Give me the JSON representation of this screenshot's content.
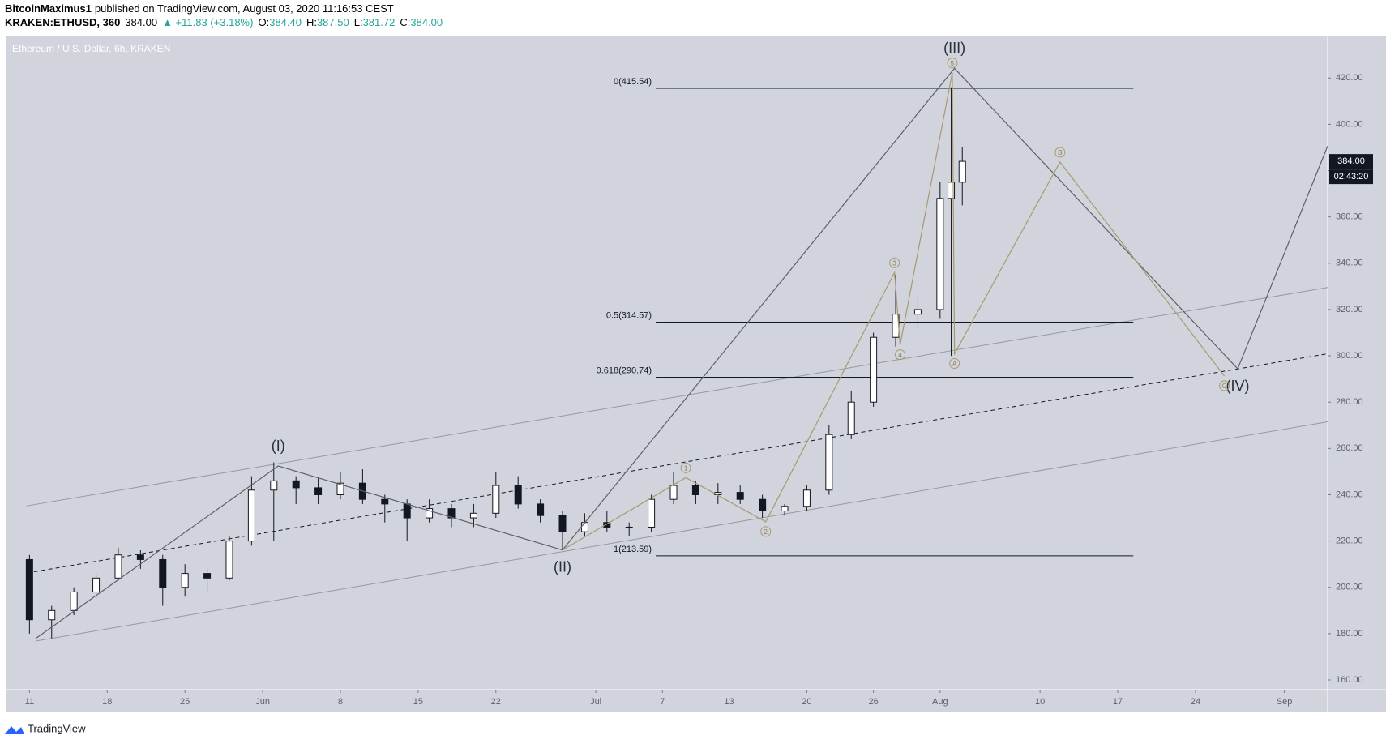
{
  "header": {
    "author": "BitcoinMaximus1",
    "published": "published on TradingView.com, August 03, 2020 11:16:53 CEST",
    "symbol": "KRAKEN:ETHUSD, 360",
    "last": "384.00",
    "change": "▲ +11.83 (+3.18%)",
    "ohlc": [
      {
        "label": "O:",
        "value": "384.40"
      },
      {
        "label": "H:",
        "value": "387.50"
      },
      {
        "label": "L:",
        "value": "381.72"
      },
      {
        "label": "C:",
        "value": "384.00"
      }
    ]
  },
  "footer": {
    "brand": "TradingView"
  },
  "chart_data": {
    "type": "candlestick",
    "title": "Ethereum / U.S. Dollar, 6h, KRAKEN",
    "up_color": "#ffffff",
    "down_color": "#131722",
    "x": [
      0,
      2,
      4,
      6,
      8,
      10,
      12,
      14,
      16,
      18,
      20,
      22,
      24,
      26,
      28,
      30,
      32,
      34,
      36,
      38,
      40,
      42,
      44,
      46,
      48,
      50,
      52,
      54,
      56,
      58,
      60,
      62,
      64,
      66,
      68,
      70,
      72,
      74,
      76,
      78,
      80,
      82,
      83,
      84
    ],
    "open": [
      212,
      186,
      190,
      198,
      204,
      214,
      212,
      200,
      206,
      204,
      220,
      242,
      246,
      243,
      240,
      245,
      238,
      236,
      230,
      234,
      230,
      232,
      244,
      236,
      231,
      224,
      228,
      226,
      226,
      238,
      244,
      240,
      241,
      238,
      233,
      235,
      242,
      266,
      280,
      308,
      318,
      320,
      368,
      375
    ],
    "high": [
      214,
      192,
      200,
      206,
      217,
      216,
      214,
      210,
      208,
      222,
      248,
      254,
      248,
      247,
      250,
      251,
      240,
      238,
      238,
      236,
      236,
      250,
      248,
      238,
      233,
      232,
      233,
      228,
      240,
      250,
      246,
      245,
      244,
      240,
      236,
      244,
      270,
      285,
      310,
      335,
      325,
      375,
      416,
      390
    ],
    "low": [
      180,
      178,
      188,
      195,
      203,
      208,
      192,
      196,
      198,
      203,
      218,
      220,
      236,
      236,
      238,
      236,
      228,
      220,
      228,
      226,
      226,
      230,
      234,
      228,
      216,
      222,
      224,
      222,
      224,
      236,
      236,
      236,
      236,
      230,
      231,
      233,
      240,
      264,
      278,
      304,
      312,
      316,
      300,
      365
    ],
    "close": [
      186,
      190,
      198,
      204,
      214,
      212,
      200,
      206,
      204,
      220,
      242,
      246,
      243,
      240,
      245,
      238,
      236,
      230,
      234,
      230,
      232,
      244,
      236,
      231,
      224,
      228,
      226,
      226,
      238,
      244,
      240,
      241,
      238,
      233,
      235,
      242,
      266,
      280,
      308,
      318,
      320,
      368,
      375,
      384
    ],
    "xlim": [
      -2.07,
      116.9
    ],
    "ylim": [
      155.8,
      438.3
    ],
    "xticks": [
      {
        "value": 0,
        "label": "11"
      },
      {
        "value": 7,
        "label": "18"
      },
      {
        "value": 14,
        "label": "25"
      },
      {
        "value": 21,
        "label": "Jun"
      },
      {
        "value": 28,
        "label": "8"
      },
      {
        "value": 35,
        "label": "15"
      },
      {
        "value": 42,
        "label": "22"
      },
      {
        "value": 51,
        "label": "Jul"
      },
      {
        "value": 57,
        "label": "7"
      },
      {
        "value": 63,
        "label": "13"
      },
      {
        "value": 70,
        "label": "20"
      },
      {
        "value": 76,
        "label": "26"
      },
      {
        "value": 82,
        "label": "Aug"
      },
      {
        "value": 91,
        "label": "10"
      },
      {
        "value": 98,
        "label": "17"
      },
      {
        "value": 105,
        "label": "24"
      },
      {
        "value": 113,
        "label": "Sep"
      }
    ],
    "yticks": [
      {
        "value": 160,
        "label": "160.00"
      },
      {
        "value": 180,
        "label": "180.00"
      },
      {
        "value": 200,
        "label": "200.00"
      },
      {
        "value": 220,
        "label": "220.00"
      },
      {
        "value": 240,
        "label": "240.00"
      },
      {
        "value": 260,
        "label": "260.00"
      },
      {
        "value": 280,
        "label": "280.00"
      },
      {
        "value": 300,
        "label": "300.00"
      },
      {
        "value": 320,
        "label": "320.00"
      },
      {
        "value": 340,
        "label": "340.00"
      },
      {
        "value": 360,
        "label": "360.00"
      },
      {
        "value": 380,
        "label": "380.00"
      },
      {
        "value": 400,
        "label": "400.00"
      },
      {
        "value": 420,
        "label": "420.00"
      }
    ],
    "last_price": {
      "value": 384,
      "label": "384.00"
    },
    "countdown": "02:43:20",
    "trend_lines": [
      {
        "x": [
          -0.24,
          116.9
        ],
        "y": [
          235.2,
          329.5
        ],
        "color": "#9598a1",
        "dashed": false
      },
      {
        "x": [
          -0.24,
          116.9
        ],
        "y": [
          206.2,
          300.9
        ],
        "color": "#131722",
        "dashed": true
      },
      {
        "x": [
          0.56,
          116.9
        ],
        "y": [
          176.8,
          271.5
        ],
        "color": "#9598a1",
        "dashed": false
      }
    ],
    "fib_levels": {
      "x": [
        56.4,
        99.4
      ],
      "color": "#131722",
      "levels": [
        {
          "value": 415.54,
          "label": "0(415.54)"
        },
        {
          "value": 314.57,
          "label": "0.5(314.57)"
        },
        {
          "value": 290.74,
          "label": "0.618(290.74)"
        },
        {
          "value": 213.59,
          "label": "1(213.59)"
        }
      ]
    },
    "wave_paths": [
      {
        "color": "#5d606b",
        "circled": false,
        "x": [
          0.56,
          22.4,
          48,
          83.3,
          108.8,
          116.9
        ],
        "y": [
          177.9,
          252.4,
          216.1,
          424.2,
          294.4,
          390.6
        ],
        "point_labels": [
          null,
          "(I)",
          "(II)",
          "(III)",
          "(IV)",
          null
        ]
      },
      {
        "color": "#a89a6e",
        "circled": true,
        "x": [
          48,
          59.1,
          66.3,
          77.9,
          78.4,
          83.1,
          83.3,
          92.8,
          107.6
        ],
        "y": [
          216.1,
          247.4,
          228.3,
          336.0,
          304.7,
          422.3,
          300.9,
          383.7,
          291.3
        ],
        "point_labels": [
          null,
          "1",
          "2",
          "3",
          "4",
          "5",
          "A",
          "B",
          "C"
        ]
      }
    ]
  }
}
